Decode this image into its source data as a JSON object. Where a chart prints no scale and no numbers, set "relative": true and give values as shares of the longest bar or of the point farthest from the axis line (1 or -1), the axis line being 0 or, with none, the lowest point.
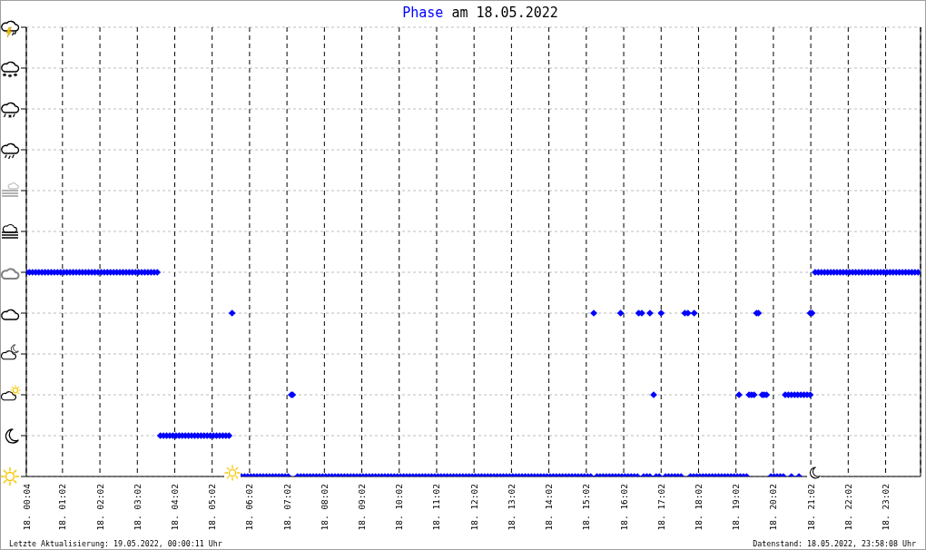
{
  "chart_data": {
    "type": "scatter",
    "title": "Phase am 18.05.2022",
    "annotations": [
      "Letzte Aktualisierung: 19.05.2022, 00:00:11 Uhr",
      "Datenstand: 18.05.2022, 23:58:08 Uhr"
    ],
    "xlim": [
      "2022-05-18T00:04",
      "2022-05-18T23:58"
    ],
    "xticks": [
      {
        "value": "2022-05-18T00:04",
        "label": "18. 00:04"
      },
      {
        "value": "2022-05-18T01:02",
        "label": "18. 01:02"
      },
      {
        "value": "2022-05-18T02:02",
        "label": "18. 02:02"
      },
      {
        "value": "2022-05-18T03:02",
        "label": "18. 03:02"
      },
      {
        "value": "2022-05-18T04:02",
        "label": "18. 04:02"
      },
      {
        "value": "2022-05-18T05:02",
        "label": "18. 05:02"
      },
      {
        "value": "2022-05-18T06:02",
        "label": "18. 06:02"
      },
      {
        "value": "2022-05-18T07:02",
        "label": "18. 07:02"
      },
      {
        "value": "2022-05-18T08:02",
        "label": "18. 08:02"
      },
      {
        "value": "2022-05-18T09:02",
        "label": "18. 09:02"
      },
      {
        "value": "2022-05-18T10:02",
        "label": "18. 10:02"
      },
      {
        "value": "2022-05-18T11:02",
        "label": "18. 11:02"
      },
      {
        "value": "2022-05-18T12:02",
        "label": "18. 12:02"
      },
      {
        "value": "2022-05-18T13:02",
        "label": "18. 13:02"
      },
      {
        "value": "2022-05-18T14:02",
        "label": "18. 14:02"
      },
      {
        "value": "2022-05-18T15:02",
        "label": "18. 15:02"
      },
      {
        "value": "2022-05-18T16:02",
        "label": "18. 16:02"
      },
      {
        "value": "2022-05-18T17:02",
        "label": "18. 17:02"
      },
      {
        "value": "2022-05-18T18:02",
        "label": "18. 18:02"
      },
      {
        "value": "2022-05-18T19:02",
        "label": "18. 19:02"
      },
      {
        "value": "2022-05-18T20:02",
        "label": "18. 20:02"
      },
      {
        "value": "2022-05-18T21:02",
        "label": "18. 21:02"
      },
      {
        "value": "2022-05-18T22:02",
        "label": "18. 22:02"
      },
      {
        "value": "2022-05-18T23:02",
        "label": "18. 23:02"
      }
    ],
    "relative": true,
    "grid": true,
    "marker": "diamond",
    "series": [
      {
        "color": "#0000ff",
        "x": [
          "2022-05-18T00:04",
          "2022-05-18T00:09",
          "2022-05-18T00:14",
          "2022-05-18T00:19",
          "2022-05-18T00:24",
          "2022-05-18T00:29",
          "2022-05-18T00:34",
          "2022-05-18T00:39",
          "2022-05-18T00:44",
          "2022-05-18T00:49",
          "2022-05-18T00:54",
          "2022-05-18T00:59",
          "2022-05-18T01:04",
          "2022-05-18T01:09",
          "2022-05-18T01:14",
          "2022-05-18T01:19",
          "2022-05-18T01:24",
          "2022-05-18T01:29",
          "2022-05-18T01:34",
          "2022-05-18T01:39",
          "2022-05-18T01:44",
          "2022-05-18T01:49",
          "2022-05-18T01:54",
          "2022-05-18T01:59",
          "2022-05-18T02:04",
          "2022-05-18T02:09",
          "2022-05-18T02:14",
          "2022-05-18T02:19",
          "2022-05-18T02:24",
          "2022-05-18T02:29",
          "2022-05-18T02:34",
          "2022-05-18T02:39",
          "2022-05-18T02:44",
          "2022-05-18T02:49",
          "2022-05-18T02:54",
          "2022-05-18T02:59",
          "2022-05-18T03:04",
          "2022-05-18T03:09",
          "2022-05-18T03:14",
          "2022-05-18T03:19",
          "2022-05-18T03:24",
          "2022-05-18T03:29",
          "2022-05-18T03:34",
          "2022-05-18T03:39",
          "2022-05-18T03:44",
          "2022-05-18T03:49",
          "2022-05-18T03:54",
          "2022-05-18T03:59",
          "2022-05-18T04:04",
          "2022-05-18T04:09",
          "2022-05-18T04:14",
          "2022-05-18T04:19",
          "2022-05-18T04:24",
          "2022-05-18T04:29",
          "2022-05-18T04:34",
          "2022-05-18T04:39",
          "2022-05-18T04:44",
          "2022-05-18T04:49",
          "2022-05-18T04:54",
          "2022-05-18T04:59",
          "2022-05-18T05:04",
          "2022-05-18T05:09",
          "2022-05-18T05:14",
          "2022-05-18T05:19",
          "2022-05-18T05:24",
          "2022-05-18T05:29",
          "2022-05-18T05:34",
          "2022-05-18T05:49",
          "2022-05-18T05:54",
          "2022-05-18T05:59",
          "2022-05-18T06:04",
          "2022-05-18T06:09",
          "2022-05-18T06:14",
          "2022-05-18T06:19",
          "2022-05-18T06:24",
          "2022-05-18T06:29",
          "2022-05-18T06:34",
          "2022-05-18T06:39",
          "2022-05-18T06:44",
          "2022-05-18T06:49",
          "2022-05-18T06:54",
          "2022-05-18T06:59",
          "2022-05-18T07:04",
          "2022-05-18T07:09",
          "2022-05-18T07:11",
          "2022-05-18T07:19",
          "2022-05-18T07:24",
          "2022-05-18T07:29",
          "2022-05-18T07:34",
          "2022-05-18T07:39",
          "2022-05-18T07:44",
          "2022-05-18T07:49",
          "2022-05-18T07:54",
          "2022-05-18T07:59",
          "2022-05-18T08:04",
          "2022-05-18T08:09",
          "2022-05-18T08:14",
          "2022-05-18T08:19",
          "2022-05-18T08:24",
          "2022-05-18T08:29",
          "2022-05-18T08:34",
          "2022-05-18T08:39",
          "2022-05-18T08:44",
          "2022-05-18T08:49",
          "2022-05-18T08:54",
          "2022-05-18T08:59",
          "2022-05-18T09:04",
          "2022-05-18T09:09",
          "2022-05-18T09:14",
          "2022-05-18T09:19",
          "2022-05-18T09:24",
          "2022-05-18T09:29",
          "2022-05-18T09:34",
          "2022-05-18T09:39",
          "2022-05-18T09:44",
          "2022-05-18T09:49",
          "2022-05-18T09:54",
          "2022-05-18T09:59",
          "2022-05-18T10:04",
          "2022-05-18T10:09",
          "2022-05-18T10:14",
          "2022-05-18T10:19",
          "2022-05-18T10:24",
          "2022-05-18T10:29",
          "2022-05-18T10:34",
          "2022-05-18T10:39",
          "2022-05-18T10:44",
          "2022-05-18T10:49",
          "2022-05-18T10:54",
          "2022-05-18T10:59",
          "2022-05-18T11:04",
          "2022-05-18T11:09",
          "2022-05-18T11:14",
          "2022-05-18T11:19",
          "2022-05-18T11:24",
          "2022-05-18T11:29",
          "2022-05-18T11:34",
          "2022-05-18T11:39",
          "2022-05-18T11:44",
          "2022-05-18T11:49",
          "2022-05-18T11:54",
          "2022-05-18T11:59",
          "2022-05-18T12:04",
          "2022-05-18T12:09",
          "2022-05-18T12:14",
          "2022-05-18T12:19",
          "2022-05-18T12:24",
          "2022-05-18T12:29",
          "2022-05-18T12:34",
          "2022-05-18T12:39",
          "2022-05-18T12:44",
          "2022-05-18T12:49",
          "2022-05-18T12:54",
          "2022-05-18T12:59",
          "2022-05-18T13:04",
          "2022-05-18T13:09",
          "2022-05-18T13:14",
          "2022-05-18T13:19",
          "2022-05-18T13:24",
          "2022-05-18T13:29",
          "2022-05-18T13:34",
          "2022-05-18T13:39",
          "2022-05-18T13:44",
          "2022-05-18T13:49",
          "2022-05-18T13:54",
          "2022-05-18T13:59",
          "2022-05-18T14:04",
          "2022-05-18T14:09",
          "2022-05-18T14:14",
          "2022-05-18T14:19",
          "2022-05-18T14:24",
          "2022-05-18T14:29",
          "2022-05-18T14:34",
          "2022-05-18T14:39",
          "2022-05-18T14:44",
          "2022-05-18T14:49",
          "2022-05-18T14:54",
          "2022-05-18T14:59",
          "2022-05-18T15:04",
          "2022-05-18T15:09",
          "2022-05-18T15:14",
          "2022-05-18T15:19",
          "2022-05-18T15:24",
          "2022-05-18T15:29",
          "2022-05-18T15:34",
          "2022-05-18T15:39",
          "2022-05-18T15:44",
          "2022-05-18T15:49",
          "2022-05-18T15:54",
          "2022-05-18T15:57",
          "2022-05-18T15:59",
          "2022-05-18T16:04",
          "2022-05-18T16:09",
          "2022-05-18T16:14",
          "2022-05-18T16:19",
          "2022-05-18T16:24",
          "2022-05-18T16:26",
          "2022-05-18T16:31",
          "2022-05-18T16:34",
          "2022-05-18T16:39",
          "2022-05-18T16:44",
          "2022-05-18T16:44",
          "2022-05-18T16:50",
          "2022-05-18T16:54",
          "2022-05-18T16:59",
          "2022-05-18T17:02",
          "2022-05-18T17:09",
          "2022-05-18T17:14",
          "2022-05-18T17:19",
          "2022-05-18T17:24",
          "2022-05-18T17:29",
          "2022-05-18T17:34",
          "2022-05-18T17:40",
          "2022-05-18T17:45",
          "2022-05-18T17:49",
          "2022-05-18T17:54",
          "2022-05-18T17:55",
          "2022-05-18T17:59",
          "2022-05-18T18:04",
          "2022-05-18T18:09",
          "2022-05-18T18:14",
          "2022-05-18T18:19",
          "2022-05-18T18:24",
          "2022-05-18T18:29",
          "2022-05-18T18:34",
          "2022-05-18T18:39",
          "2022-05-18T18:44",
          "2022-05-18T18:49",
          "2022-05-18T18:54",
          "2022-05-18T18:59",
          "2022-05-18T19:04",
          "2022-05-18T19:07",
          "2022-05-18T19:09",
          "2022-05-18T19:14",
          "2022-05-18T19:19",
          "2022-05-18T19:23",
          "2022-05-18T19:27",
          "2022-05-18T19:31",
          "2022-05-18T19:35",
          "2022-05-18T19:38",
          "2022-05-18T19:44",
          "2022-05-18T19:47",
          "2022-05-18T19:51",
          "2022-05-18T19:58",
          "2022-05-18T20:03",
          "2022-05-18T20:08",
          "2022-05-18T20:13",
          "2022-05-18T20:18",
          "2022-05-18T20:21",
          "2022-05-18T20:26",
          "2022-05-18T20:31",
          "2022-05-18T20:31",
          "2022-05-18T20:36",
          "2022-05-18T20:41",
          "2022-05-18T20:43",
          "2022-05-18T20:46",
          "2022-05-18T20:51",
          "2022-05-18T20:56",
          "2022-05-18T21:01",
          "2022-05-18T21:01",
          "2022-05-18T21:04",
          "2022-05-18T21:09",
          "2022-05-18T21:14",
          "2022-05-18T21:19",
          "2022-05-18T21:24",
          "2022-05-18T21:29",
          "2022-05-18T21:34",
          "2022-05-18T21:39",
          "2022-05-18T21:44",
          "2022-05-18T21:49",
          "2022-05-18T21:54",
          "2022-05-18T21:59",
          "2022-05-18T22:04",
          "2022-05-18T22:09",
          "2022-05-18T22:14",
          "2022-05-18T22:19",
          "2022-05-18T22:24",
          "2022-05-18T22:29",
          "2022-05-18T22:34",
          "2022-05-18T22:39",
          "2022-05-18T22:44",
          "2022-05-18T22:49",
          "2022-05-18T22:54",
          "2022-05-18T22:59",
          "2022-05-18T23:04",
          "2022-05-18T23:09",
          "2022-05-18T23:14",
          "2022-05-18T23:19",
          "2022-05-18T23:24",
          "2022-05-18T23:29",
          "2022-05-18T23:34",
          "2022-05-18T23:39",
          "2022-05-18T23:44",
          "2022-05-18T23:49",
          "2022-05-18T23:54"
        ],
        "values": [
          1,
          1,
          1,
          1,
          1,
          1,
          1,
          1,
          1,
          1,
          1,
          1,
          1,
          1,
          1,
          1,
          1,
          1,
          1,
          1,
          1,
          1,
          1,
          1,
          1,
          1,
          1,
          1,
          1,
          1,
          1,
          1,
          1,
          1,
          1,
          1,
          1,
          1,
          1,
          1,
          1,
          1,
          1,
          0.2,
          0.2,
          0.2,
          0.2,
          0.2,
          0.2,
          0.2,
          0.2,
          0.2,
          0.2,
          0.2,
          0.2,
          0.2,
          0.2,
          0.2,
          0.2,
          0.2,
          0.2,
          0.2,
          0.2,
          0.2,
          0.2,
          0.2,
          0.8,
          0,
          0,
          0,
          0,
          0,
          0,
          0,
          0,
          0,
          0,
          0,
          0,
          0,
          0,
          0,
          0,
          0.4,
          0.4,
          0,
          0,
          0,
          0,
          0,
          0,
          0,
          0,
          0,
          0,
          0,
          0,
          0,
          0,
          0,
          0,
          0,
          0,
          0,
          0,
          0,
          0,
          0,
          0,
          0,
          0,
          0,
          0,
          0,
          0,
          0,
          0,
          0,
          0,
          0,
          0,
          0,
          0,
          0,
          0,
          0,
          0,
          0,
          0,
          0,
          0,
          0,
          0,
          0,
          0,
          0,
          0,
          0,
          0,
          0,
          0,
          0,
          0,
          0,
          0,
          0,
          0,
          0,
          0,
          0,
          0,
          0,
          0,
          0,
          0,
          0,
          0,
          0,
          0,
          0,
          0,
          0,
          0,
          0,
          0,
          0,
          0,
          0,
          0,
          0,
          0,
          0,
          0,
          0,
          0,
          0,
          0,
          0,
          0,
          0,
          0.8,
          0,
          0,
          0,
          0,
          0,
          0,
          0,
          0,
          0.8,
          0,
          0,
          0,
          0,
          0,
          0,
          0.8,
          0.8,
          0,
          0,
          0,
          0.8,
          0.4,
          0,
          0,
          0.8,
          0,
          0,
          0,
          0,
          0,
          0,
          0.8,
          0.8,
          0,
          0,
          0.8,
          0,
          0,
          0,
          0,
          0,
          0,
          0,
          0,
          0,
          0,
          0,
          0,
          0,
          0,
          0.4,
          0,
          0,
          0,
          0.4,
          0.4,
          0.4,
          0.8,
          0.8,
          0.4,
          0.4,
          0.4,
          0,
          0,
          0,
          0,
          0,
          0.4,
          0.4,
          0,
          0.4,
          0.4,
          0.4,
          0,
          0.4,
          0.4,
          0.4,
          0.4,
          0.8,
          0.8,
          1,
          1,
          1,
          1,
          1,
          1,
          1,
          1,
          1,
          1,
          1,
          1,
          1,
          1,
          1,
          1,
          1,
          1,
          1,
          1,
          1,
          1,
          1,
          1,
          1,
          1,
          1,
          1,
          1,
          1,
          1,
          1,
          1,
          1
        ]
      }
    ]
  }
}
